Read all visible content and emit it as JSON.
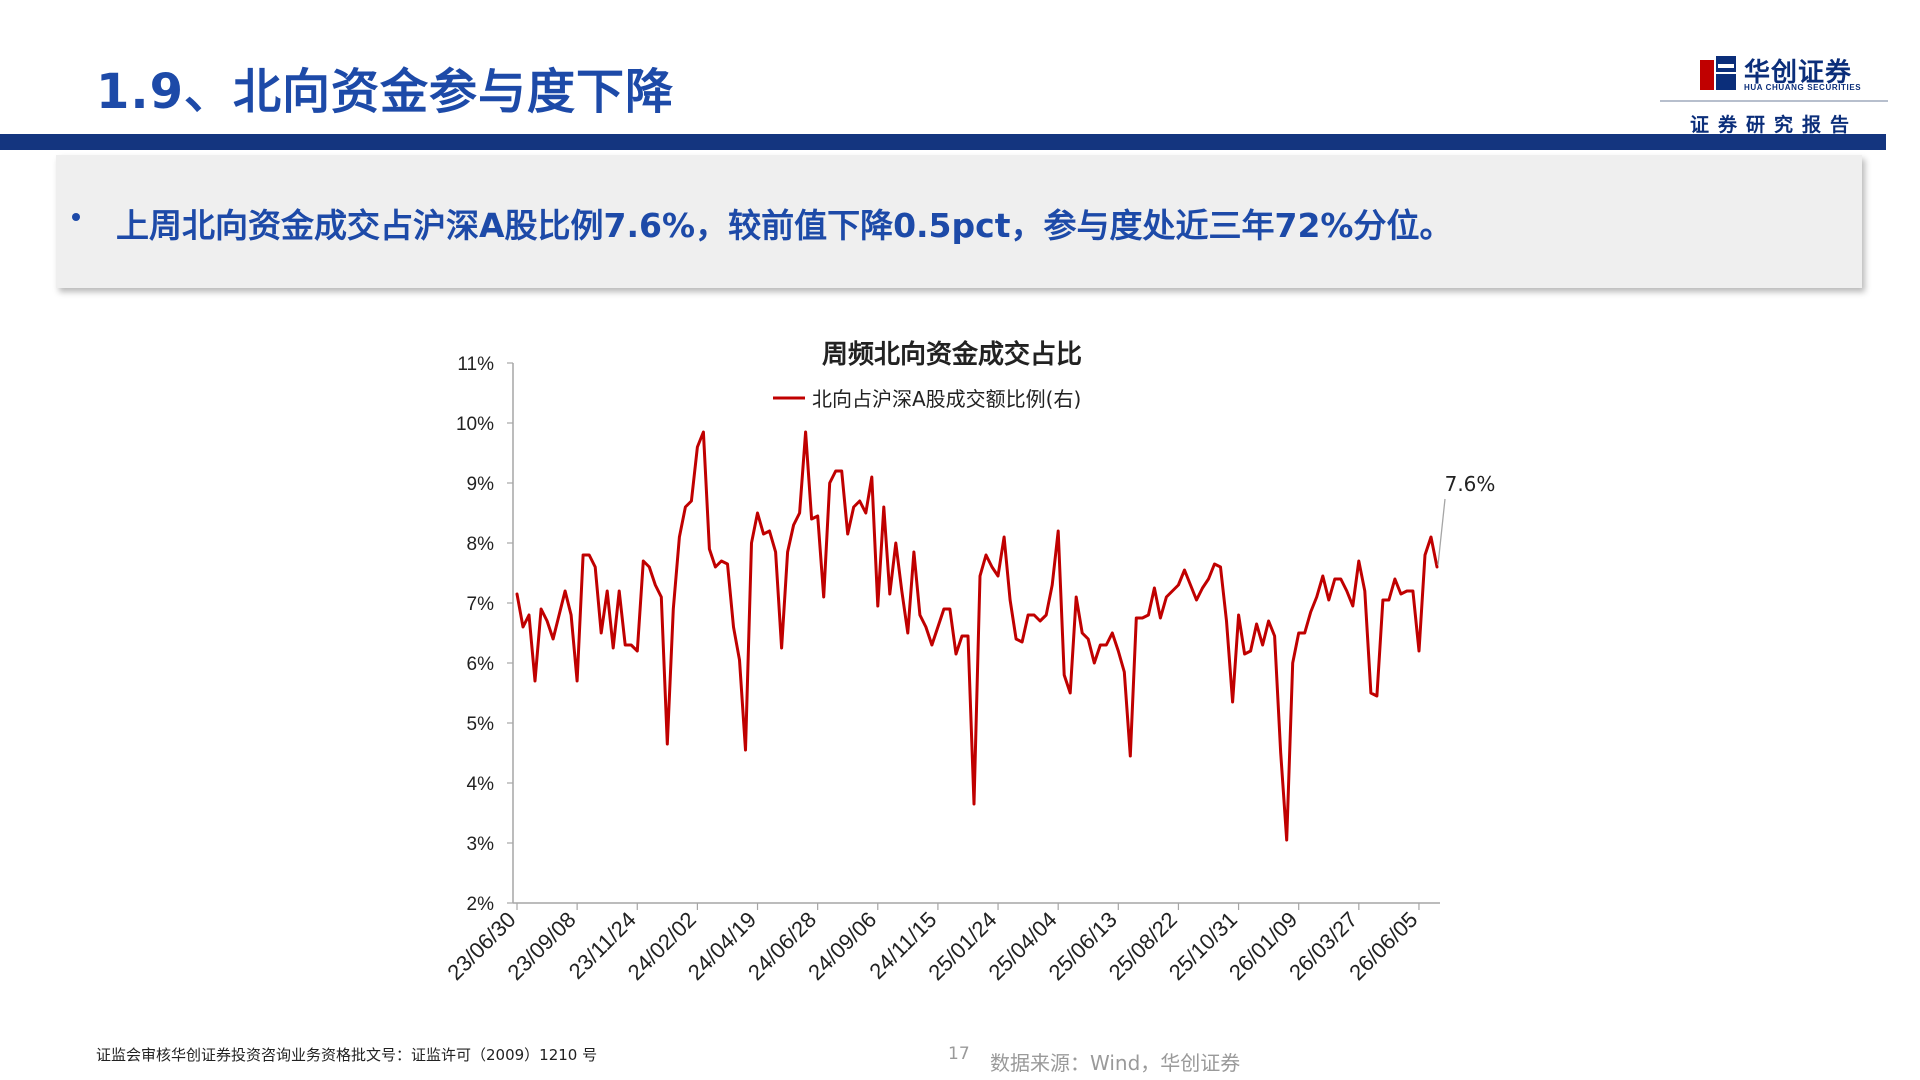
{
  "header": {
    "title": "1.9、北向资金参与度下降",
    "logo": {
      "name": "华创证券",
      "english": "HUA CHUANG SECURITIES",
      "tagline": "证券研究报告"
    }
  },
  "summary": {
    "bullet": "上周北向资金成交占沪深A股比例7.6%，较前值下降0.5pct，参与度处近三年72%分位。"
  },
  "colors": {
    "title_blue": "#1d4aa8",
    "band_navy": "#14357f",
    "series_red": "#c00000"
  },
  "chart_data": {
    "type": "line",
    "title": "周频北向资金成交占比",
    "xlabel": "",
    "ylabel": "",
    "ylim": [
      2,
      11
    ],
    "yticks": [
      2,
      3,
      4,
      5,
      6,
      7,
      8,
      9,
      10,
      11
    ],
    "y_tick_labels": [
      "2%",
      "3%",
      "4%",
      "5%",
      "6%",
      "7%",
      "8%",
      "9%",
      "10%",
      "11%"
    ],
    "x_tick_labels": [
      "23/06/30",
      "23/09/08",
      "23/11/24",
      "24/02/02",
      "24/04/19",
      "24/06/28",
      "24/09/06",
      "24/11/15",
      "25/01/24",
      "25/04/04",
      "25/06/13",
      "25/08/22",
      "25/10/31",
      "26/01/09",
      "26/03/27",
      "26/06/05"
    ],
    "grid": false,
    "legend": "top-center",
    "series": [
      {
        "name": "北向占沪深A股成交额比例(右)",
        "color": "#c00000",
        "values": [
          7.15,
          6.6,
          6.8,
          5.7,
          6.9,
          6.7,
          6.4,
          6.8,
          7.2,
          6.8,
          5.7,
          7.8,
          7.8,
          7.6,
          6.5,
          7.2,
          6.25,
          7.2,
          6.3,
          6.3,
          6.2,
          7.7,
          7.6,
          7.3,
          7.1,
          4.65,
          6.9,
          8.1,
          8.6,
          8.7,
          9.6,
          9.85,
          7.9,
          7.6,
          7.7,
          7.65,
          6.6,
          6.05,
          4.55,
          8.0,
          8.5,
          8.15,
          8.2,
          7.85,
          6.25,
          7.85,
          8.3,
          8.5,
          9.85,
          8.4,
          8.45,
          7.1,
          9.0,
          9.2,
          9.2,
          8.15,
          8.6,
          8.7,
          8.5,
          9.1,
          6.95,
          8.6,
          7.15,
          8.0,
          7.2,
          6.5,
          7.85,
          6.8,
          6.6,
          6.3,
          6.6,
          6.9,
          6.9,
          6.15,
          6.45,
          6.45,
          3.65,
          7.45,
          7.8,
          7.6,
          7.45,
          8.1,
          7.05,
          6.4,
          6.35,
          6.8,
          6.8,
          6.7,
          6.8,
          7.3,
          8.2,
          5.8,
          5.5,
          7.1,
          6.5,
          6.4,
          6.0,
          6.3,
          6.3,
          6.5,
          6.2,
          5.85,
          4.45,
          6.75,
          6.75,
          6.8,
          7.25,
          6.75,
          7.1,
          7.2,
          7.3,
          7.55,
          7.3,
          7.05,
          7.25,
          7.4,
          7.65,
          7.6,
          6.7,
          5.35,
          6.8,
          6.15,
          6.2,
          6.65,
          6.3,
          6.7,
          6.45,
          4.5,
          3.05,
          6.0,
          6.5,
          6.5,
          6.85,
          7.1,
          7.45,
          7.05,
          7.4,
          7.4,
          7.2,
          6.95,
          7.7,
          7.2,
          5.5,
          5.45,
          7.05,
          7.05,
          7.4,
          7.15,
          7.2,
          7.2,
          6.2,
          7.8,
          8.1,
          7.6
        ]
      }
    ],
    "annotation": {
      "text": "7.6%",
      "value": 7.6
    }
  },
  "footer": {
    "license": "证监会审核华创证券投资咨询业务资格批文号：证监许可（2009）1210 号",
    "page_number": "17",
    "source": "数据来源：Wind，华创证券"
  }
}
